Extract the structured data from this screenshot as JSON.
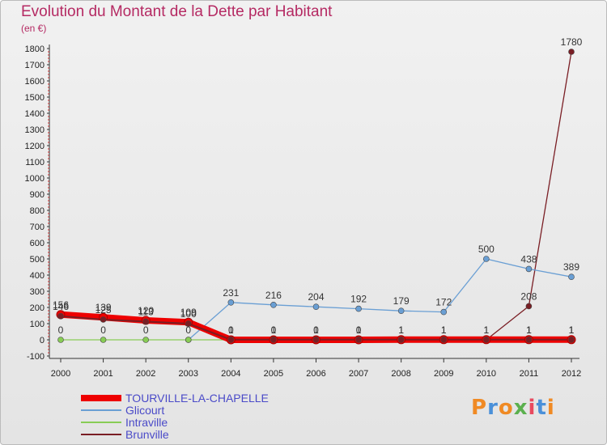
{
  "header": {
    "title": "Evolution du Montant de la Dette par Habitant",
    "unit": "(en €)"
  },
  "logo": {
    "text": "Proxiti",
    "colors": [
      "#f08a24",
      "#4a90d9",
      "#f08a24",
      "#5bb04e",
      "#e84a5f",
      "#4a90d9",
      "#f08a24"
    ]
  },
  "colors": {
    "title": "#b52a63",
    "legend_text": "#4a4ac8",
    "axis": "#333333"
  },
  "chart_data": {
    "type": "line",
    "title": "Evolution du Montant de la Dette par Habitant",
    "ylabel": "(en €)",
    "xlabel": "",
    "ylim": [
      -100,
      1800
    ],
    "yticks": [
      -100,
      0,
      100,
      200,
      300,
      400,
      500,
      600,
      700,
      800,
      900,
      1000,
      1100,
      1200,
      1300,
      1400,
      1500,
      1600,
      1700,
      1800
    ],
    "x": [
      "2000",
      "2001",
      "2002",
      "2003",
      "2004",
      "2005",
      "2006",
      "2007",
      "2008",
      "2009",
      "2010",
      "2011",
      "2012"
    ],
    "grid": false,
    "legend_position": "bottom-left",
    "series": [
      {
        "name": "Brunville",
        "color": "#7a1e24",
        "values": [
          null,
          null,
          null,
          null,
          null,
          null,
          null,
          null,
          null,
          null,
          0,
          208,
          1780
        ],
        "labels": [
          "",
          "",
          "",
          "",
          "",
          "",
          "",
          "",
          "",
          "",
          "",
          "208",
          "1780"
        ]
      },
      {
        "name": "Glicourt",
        "color": "#6a9fd4",
        "values": [
          null,
          null,
          null,
          0,
          231,
          216,
          204,
          192,
          179,
          172,
          500,
          438,
          389
        ],
        "labels": [
          "",
          "",
          "",
          "",
          "231",
          "216",
          "204",
          "192",
          "179",
          "172",
          "500",
          "438",
          "389"
        ]
      },
      {
        "name": "Intraville",
        "color": "#88cc55",
        "values": [
          0,
          0,
          0,
          0,
          0,
          0,
          0,
          0,
          0,
          0,
          0,
          0,
          0
        ],
        "labels": [
          "0",
          "0",
          "0",
          "0",
          "",
          "",
          "",
          "",
          "",
          "",
          "",
          "",
          ""
        ]
      },
      {
        "name": "TOURVILLE-LA-CHAPELLE",
        "color": "#ee0000",
        "values": [
          156,
          139,
          120,
          109,
          0,
          0,
          0,
          0,
          1,
          1,
          1,
          1,
          1
        ],
        "labels": [
          "156",
          "139",
          "120",
          "109",
          "0",
          "0",
          "0",
          "0",
          "1",
          "1",
          "1",
          "1",
          "1"
        ]
      },
      {
        "name": "",
        "color": "#7a1e24",
        "values": [
          146,
          125,
          113,
          100,
          1,
          1,
          1,
          1,
          1,
          1,
          1,
          1,
          1
        ],
        "labels": [
          "146",
          "125",
          "113",
          "100",
          "1",
          "1",
          "1",
          "1",
          "1",
          "1",
          "1",
          "1",
          "1"
        ]
      }
    ]
  },
  "legend": [
    {
      "label": "TOURVILLE-LA-CHAPELLE",
      "color": "#ee0000"
    },
    {
      "label": "Glicourt",
      "color": "#6a9fd4"
    },
    {
      "label": "Intraville",
      "color": "#88cc55"
    },
    {
      "label": "Brunville",
      "color": "#7a1e24"
    }
  ]
}
